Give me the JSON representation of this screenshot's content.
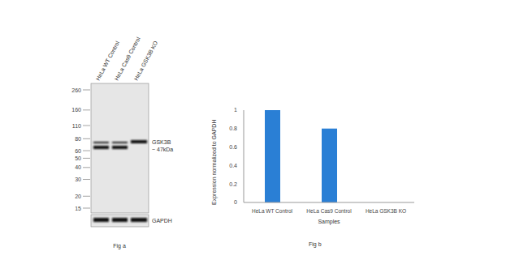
{
  "chart_data": {
    "type": "bar",
    "title": "Fig b",
    "categories": [
      "HeLa WT Control",
      "HeLa Cas9 Control",
      "HeLa GSK3B KO"
    ],
    "values": [
      1,
      0.8,
      0
    ],
    "color": "#2a7fd5",
    "ylim": [
      0,
      1
    ],
    "yticks": [
      0,
      0.2,
      0.4,
      0.6,
      0.8,
      1
    ],
    "y_label": "Expression normalized to GAPDH",
    "x_label": "Samples",
    "grid": false
  },
  "blot": {
    "caption": "Fig a",
    "lanes": [
      "HeLa WT Control",
      "HeLa Cas9 Control",
      "HeLa GSK3B KO"
    ],
    "markers": [
      260,
      160,
      110,
      80,
      60,
      50,
      40,
      30,
      20,
      15
    ],
    "target_label": "GSK3B",
    "target_size": "~ 47kDa",
    "loading_control": "GAPDH"
  }
}
